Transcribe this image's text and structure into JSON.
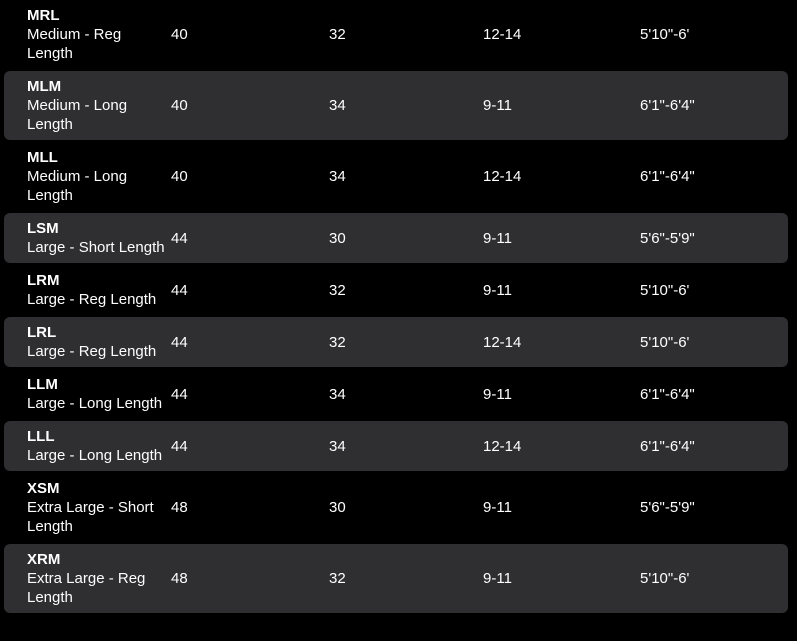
{
  "page": {
    "background_color": "#000000",
    "alt_row_color": "#2f2f31",
    "text_color": "#ffffff"
  },
  "table": {
    "rows": [
      {
        "code": "MRL",
        "description": "Medium - Reg Length",
        "values": [
          "40",
          "32",
          "12-14",
          "5'10\"-6'"
        ]
      },
      {
        "code": "MLM",
        "description": "Medium - Long Length",
        "values": [
          "40",
          "34",
          "9-11",
          "6'1\"-6'4\""
        ]
      },
      {
        "code": "MLL",
        "description": "Medium - Long Length",
        "values": [
          "40",
          "34",
          "12-14",
          "6'1\"-6'4\""
        ]
      },
      {
        "code": "LSM",
        "description": "Large - Short Length",
        "values": [
          "44",
          "30",
          "9-11",
          "5'6\"-5'9\""
        ]
      },
      {
        "code": "LRM",
        "description": "Large - Reg Length",
        "values": [
          "44",
          "32",
          "9-11",
          "5'10\"-6'"
        ]
      },
      {
        "code": "LRL",
        "description": "Large - Reg Length",
        "values": [
          "44",
          "32",
          "12-14",
          "5'10\"-6'"
        ]
      },
      {
        "code": "LLM",
        "description": "Large - Long Length",
        "values": [
          "44",
          "34",
          "9-11",
          "6'1\"-6'4\""
        ]
      },
      {
        "code": "LLL",
        "description": "Large - Long Length",
        "values": [
          "44",
          "34",
          "12-14",
          "6'1\"-6'4\""
        ]
      },
      {
        "code": "XSM",
        "description": "Extra Large - Short Length",
        "values": [
          "48",
          "30",
          "9-11",
          "5'6\"-5'9\""
        ]
      },
      {
        "code": "XRM",
        "description": "Extra Large - Reg Length",
        "values": [
          "48",
          "32",
          "9-11",
          "5'10\"-6'"
        ]
      }
    ]
  }
}
